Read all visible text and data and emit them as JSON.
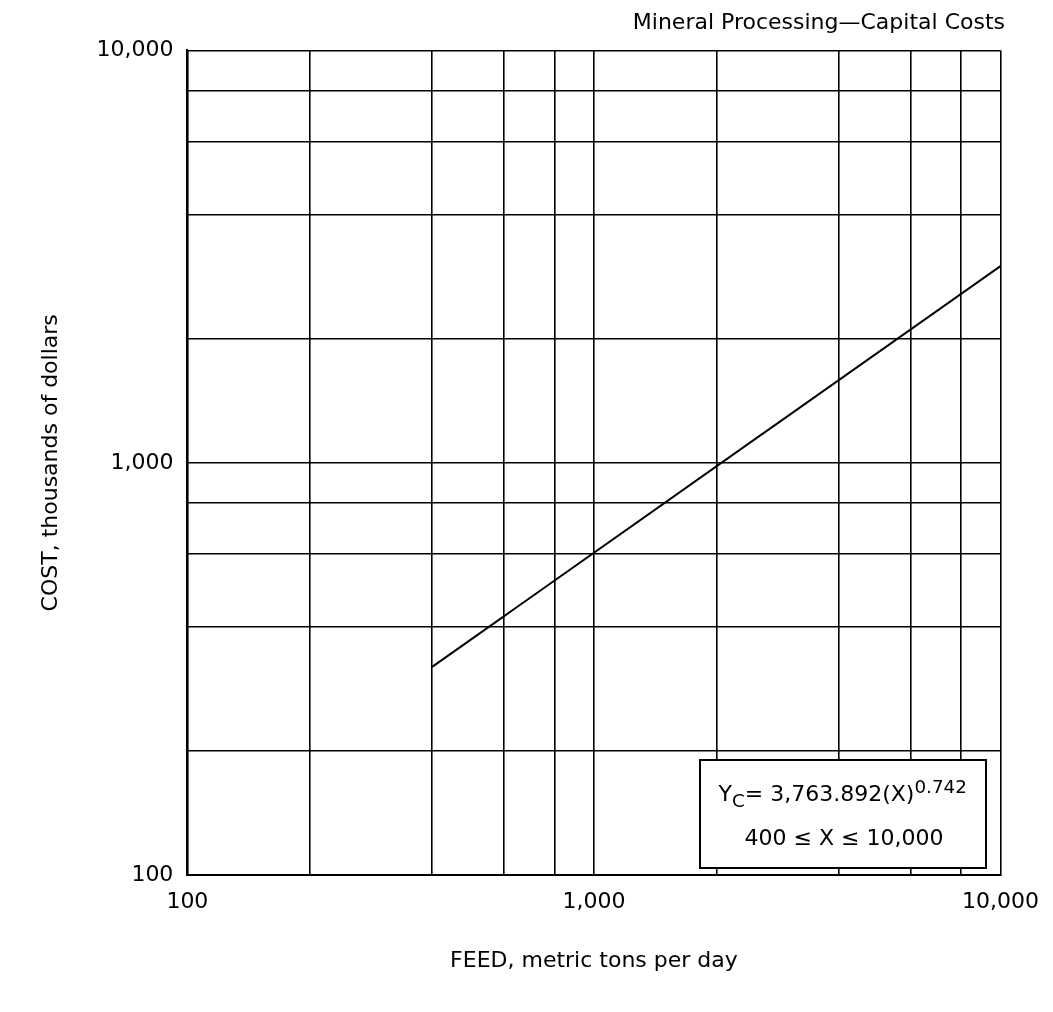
{
  "chart_data": {
    "type": "line",
    "title": "Mineral Processing—Capital Costs",
    "xlabel": "FEED, metric tons per day",
    "ylabel": "COST, thousands of dollars",
    "annotations": [
      "Y$_{C}$= 3,763.892(X)$^{0.742}$",
      "400 ≤ X ≤ 10,000"
    ],
    "x": [
      400,
      10000
    ],
    "values": [
      320,
      3000
    ],
    "color": "#000000",
    "xlim": [
      100,
      10000
    ],
    "ylim": [
      100,
      10000
    ],
    "xticks": [
      {
        "value": 100,
        "label": "100"
      },
      {
        "value": 200,
        "label": null
      },
      {
        "value": 400,
        "label": null
      },
      {
        "value": 600,
        "label": null
      },
      {
        "value": 800,
        "label": null
      },
      {
        "value": 1000,
        "label": "1,000"
      },
      {
        "value": 2000,
        "label": null
      },
      {
        "value": 4000,
        "label": null
      },
      {
        "value": 6000,
        "label": null
      },
      {
        "value": 8000,
        "label": null
      },
      {
        "value": 10000,
        "label": "10,000"
      }
    ],
    "yticks": [
      {
        "value": 100,
        "label": "100"
      },
      {
        "value": 200,
        "label": null
      },
      {
        "value": 400,
        "label": null
      },
      {
        "value": 600,
        "label": null
      },
      {
        "value": 800,
        "label": null
      },
      {
        "value": 1000,
        "label": "1,000"
      },
      {
        "value": 2000,
        "label": null
      },
      {
        "value": 4000,
        "label": null
      },
      {
        "value": 6000,
        "label": null
      },
      {
        "value": 8000,
        "label": null
      },
      {
        "value": 10000,
        "label": "10,000"
      }
    ],
    "log": "xy",
    "grid": true,
    "marker": "none",
    "line_style": "solid"
  }
}
